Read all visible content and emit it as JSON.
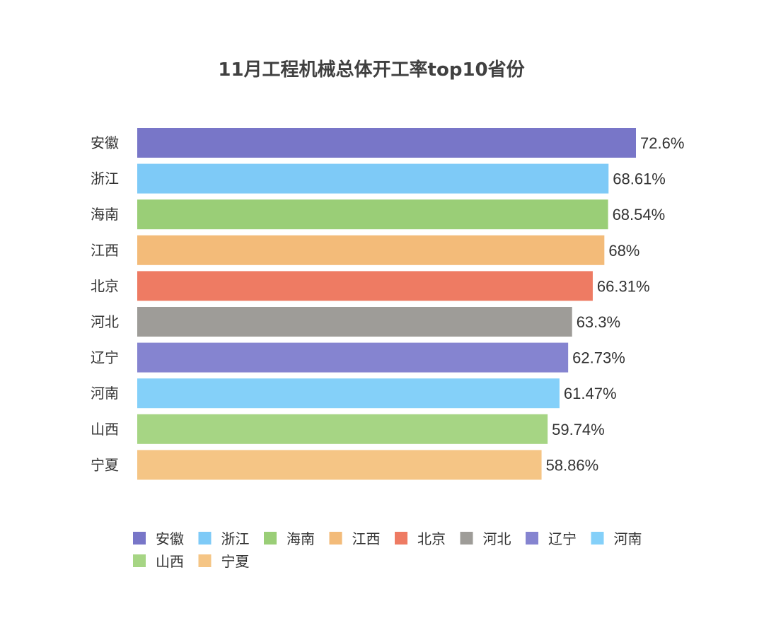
{
  "chart_data": {
    "type": "bar",
    "orientation": "horizontal",
    "title": "11月工程机械总体开工率top10省份",
    "xlabel": "",
    "ylabel": "",
    "xlim": [
      0,
      72.6
    ],
    "grid": false,
    "legend_position": "bottom",
    "categories": [
      "安徽",
      "浙江",
      "海南",
      "江西",
      "北京",
      "河北",
      "辽宁",
      "河南",
      "山西",
      "宁夏"
    ],
    "values": [
      72.6,
      68.61,
      68.54,
      68,
      66.31,
      63.3,
      62.73,
      61.47,
      59.74,
      58.86
    ],
    "value_labels": [
      "72.6%",
      "68.61%",
      "68.54%",
      "68%",
      "66.31%",
      "63.3%",
      "62.73%",
      "61.47%",
      "59.74%",
      "58.86%"
    ],
    "colors": [
      "#7876C8",
      "#7ECAF7",
      "#9ACE77",
      "#F3BB79",
      "#EE7B63",
      "#9E9C98",
      "#8584D0",
      "#84D0F9",
      "#A6D584",
      "#F5C585"
    ],
    "legend": [
      "安徽",
      "浙江",
      "海南",
      "江西",
      "北京",
      "河北",
      "辽宁",
      "河南",
      "山西",
      "宁夏"
    ]
  }
}
